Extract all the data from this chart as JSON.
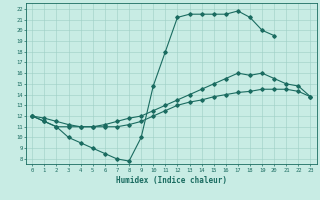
{
  "title": "",
  "xlabel": "Humidex (Indice chaleur)",
  "xlim": [
    -0.5,
    23.5
  ],
  "ylim": [
    7.5,
    22.5
  ],
  "xticks": [
    0,
    1,
    2,
    3,
    4,
    5,
    6,
    7,
    8,
    9,
    10,
    11,
    12,
    13,
    14,
    15,
    16,
    17,
    18,
    19,
    20,
    21,
    22,
    23
  ],
  "yticks": [
    8,
    9,
    10,
    11,
    12,
    13,
    14,
    15,
    16,
    17,
    18,
    19,
    20,
    21,
    22
  ],
  "bg_color": "#c8ece4",
  "line_color": "#1a6b60",
  "grid_color": "#9ecfc4",
  "curves": [
    {
      "x": [
        0,
        1,
        2,
        3,
        4,
        5,
        6,
        7,
        8,
        9,
        10,
        11,
        12,
        13,
        14,
        15,
        16,
        17,
        18,
        19,
        20
      ],
      "y": [
        12,
        11.5,
        11,
        10,
        9.5,
        9,
        8.5,
        8.0,
        7.8,
        10.0,
        14.8,
        18.0,
        21.2,
        21.5,
        21.5,
        21.5,
        21.5,
        21.8,
        21.2,
        20.0,
        19.5
      ]
    },
    {
      "x": [
        0,
        1,
        2,
        3,
        4,
        5,
        6,
        7,
        8,
        9,
        10,
        11,
        12,
        13,
        14,
        15,
        16,
        17,
        18,
        19,
        20,
        21,
        22,
        23
      ],
      "y": [
        12,
        11.5,
        11.0,
        11.0,
        11.0,
        11.0,
        11.2,
        11.5,
        11.8,
        12.0,
        12.5,
        13.0,
        13.5,
        14.0,
        14.5,
        15.0,
        15.5,
        16.0,
        15.8,
        16.0,
        15.5,
        15.0,
        14.8,
        13.8
      ]
    },
    {
      "x": [
        0,
        1,
        2,
        3,
        4,
        5,
        6,
        7,
        8,
        9,
        10,
        11,
        12,
        13,
        14,
        15,
        16,
        17,
        18,
        19,
        20,
        21,
        22,
        23
      ],
      "y": [
        12,
        11.8,
        11.5,
        11.2,
        11.0,
        11.0,
        11.0,
        11.0,
        11.2,
        11.5,
        12.0,
        12.5,
        13.0,
        13.3,
        13.5,
        13.8,
        14.0,
        14.2,
        14.3,
        14.5,
        14.5,
        14.5,
        14.3,
        13.8
      ]
    }
  ]
}
